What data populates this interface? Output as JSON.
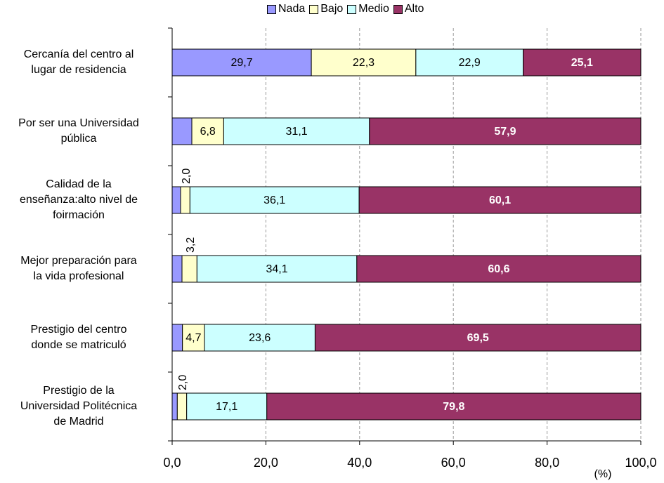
{
  "chart_data": {
    "type": "stacked_barh",
    "categories": [
      "Cercanía del centro al\nlugar de residencia",
      "Por ser una Universidad\npública",
      "Calidad de la\nenseñanza:alto nivel de\nfoirmación",
      "Mejor preparación para\nla vida profesional",
      "Prestigio del centro\ndonde se matriculó",
      "Prestigio de la\nUniversidad Politécnica\nde Madrid"
    ],
    "series": [
      {
        "name": "Nada",
        "color": "#9999ff",
        "values": [
          29.7,
          4.2,
          1.8,
          2.1,
          2.2,
          1.1
        ],
        "value_labels": [
          "29,7",
          null,
          null,
          null,
          null,
          null
        ]
      },
      {
        "name": "Bajo",
        "color": "#ffffcc",
        "values": [
          22.3,
          6.8,
          2.0,
          3.2,
          4.7,
          2.0
        ],
        "value_labels": [
          "22,3",
          "6,8",
          "2,0",
          "3,2",
          "4,7",
          "2,0"
        ]
      },
      {
        "name": "Medio",
        "color": "#ccffff",
        "values": [
          22.9,
          31.1,
          36.1,
          34.1,
          23.6,
          17.1
        ],
        "value_labels": [
          "22,9",
          "31,1",
          "36,1",
          "34,1",
          "23,6",
          "17,1"
        ]
      },
      {
        "name": "Alto",
        "color": "#993366",
        "values": [
          25.1,
          57.9,
          60.1,
          60.6,
          69.5,
          79.8
        ],
        "value_labels": [
          "25,1",
          "57,9",
          "60,1",
          "60,6",
          "69,5",
          "79,8"
        ]
      }
    ],
    "xlabel": "(%)",
    "xlim": [
      0,
      100
    ],
    "xticks": [
      {
        "value": 0,
        "label": "0,0"
      },
      {
        "value": 20,
        "label": "20,0"
      },
      {
        "value": 40,
        "label": "40,0"
      },
      {
        "value": 60,
        "label": "60,0"
      },
      {
        "value": 80,
        "label": "80,0"
      },
      {
        "value": 100,
        "label": "100,0"
      }
    ],
    "grid": true,
    "legend": "top"
  }
}
